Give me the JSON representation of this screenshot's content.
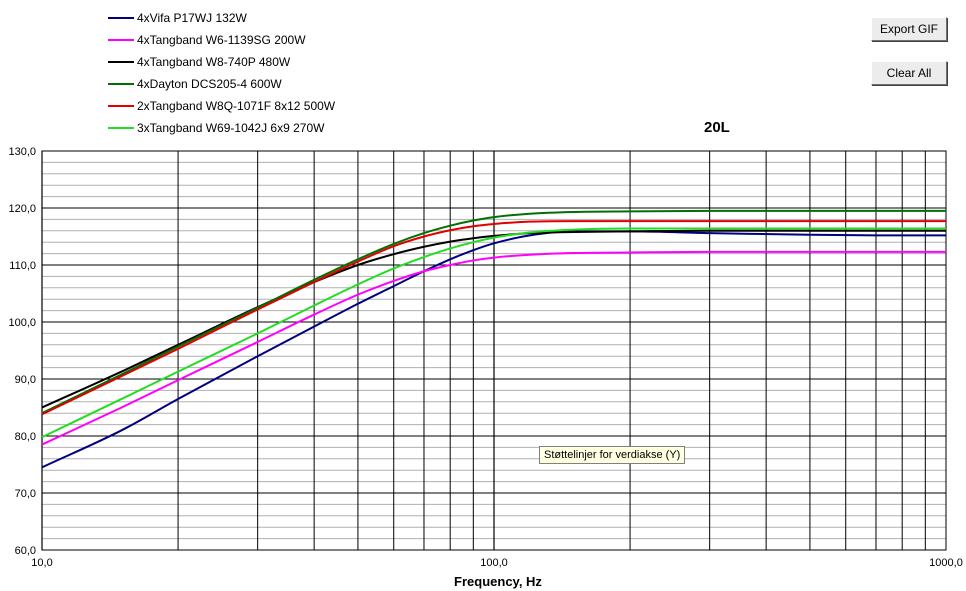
{
  "buttons": {
    "export_label": "Export GIF",
    "clear_label": "Clear All"
  },
  "tooltip": {
    "text": "Støttelinjer for verdiakse (Y)"
  },
  "chart_data": {
    "type": "line",
    "title": "20L",
    "xlabel": "Frequency, Hz",
    "ylabel": "",
    "x_scale": "log",
    "xlim": [
      10,
      1000
    ],
    "ylim": [
      60,
      130
    ],
    "x_ticks": [
      10,
      100,
      1000
    ],
    "x_tick_labels": [
      "10,0",
      "100,0",
      "1000,0"
    ],
    "y_ticks": [
      60,
      70,
      80,
      90,
      100,
      110,
      120,
      130
    ],
    "y_tick_labels": [
      "60,0",
      "70,0",
      "80,0",
      "90,0",
      "100,0",
      "110,0",
      "120,0",
      "130,0"
    ],
    "grid": true,
    "legend_position": "top-left",
    "x": [
      10,
      15,
      20,
      30,
      40,
      50,
      60,
      70,
      80,
      90,
      100,
      120,
      150,
      200,
      300,
      500,
      700,
      1000
    ],
    "series": [
      {
        "name": "4xVifa P17WJ 132W",
        "color": "#000080",
        "values": [
          74.5,
          81.0,
          86.5,
          94.0,
          99.2,
          103.2,
          106.3,
          108.9,
          111.0,
          112.6,
          113.8,
          115.2,
          115.9,
          115.9,
          115.6,
          115.3,
          115.2,
          115.2
        ]
      },
      {
        "name": "4xTangband W6-1139SG 200W",
        "color": "#ff00ff",
        "values": [
          78.5,
          85.0,
          89.8,
          96.5,
          101.3,
          104.8,
          107.2,
          108.9,
          110.0,
          110.8,
          111.3,
          111.8,
          112.1,
          112.2,
          112.3,
          112.3,
          112.3,
          112.3
        ]
      },
      {
        "name": "4xTangband W8-740P 480W",
        "color": "#000000",
        "values": [
          85.0,
          91.3,
          96.0,
          102.6,
          107.0,
          110.0,
          111.9,
          113.2,
          114.1,
          114.7,
          115.1,
          115.6,
          115.8,
          115.9,
          116.0,
          116.0,
          116.0,
          116.0
        ]
      },
      {
        "name": "4xDayton DCS205-4 600W",
        "color": "#007000",
        "values": [
          84.0,
          90.8,
          95.7,
          102.5,
          107.4,
          111.0,
          113.7,
          115.6,
          116.9,
          117.8,
          118.4,
          119.0,
          119.3,
          119.4,
          119.5,
          119.5,
          119.5,
          119.5
        ]
      },
      {
        "name": "2xTangband W8Q-1071F 8x12 500W",
        "color": "#e00000",
        "values": [
          83.8,
          90.5,
          95.3,
          102.2,
          107.0,
          110.6,
          113.3,
          115.0,
          116.1,
          116.8,
          117.2,
          117.6,
          117.7,
          117.7,
          117.7,
          117.7,
          117.7,
          117.7
        ]
      },
      {
        "name": "3xTangband W69-1042J 6x9 270W",
        "color": "#22dd22",
        "values": [
          79.8,
          86.5,
          91.3,
          98.0,
          102.9,
          106.6,
          109.4,
          111.4,
          112.9,
          114.0,
          114.8,
          115.7,
          116.2,
          116.4,
          116.4,
          116.4,
          116.4,
          116.4
        ]
      }
    ]
  }
}
